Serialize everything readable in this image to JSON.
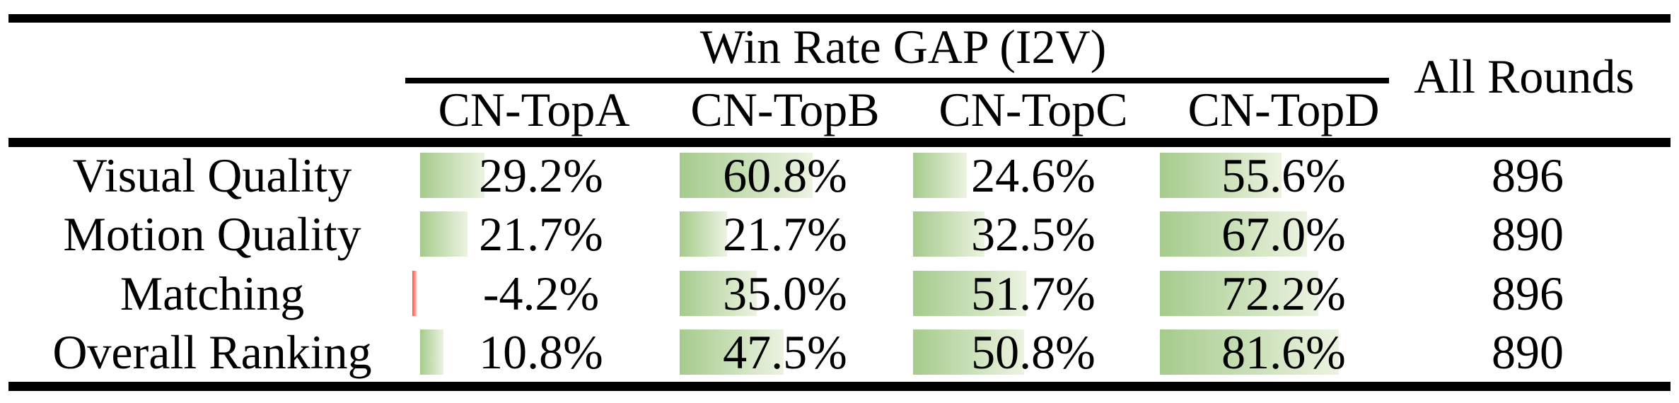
{
  "table": {
    "group_header": "Win Rate GAP (I2V)",
    "all_rounds_header": "All Rounds",
    "columns": [
      "CN-TopA",
      "CN-TopB",
      "CN-TopC",
      "CN-TopD"
    ],
    "rows": [
      {
        "label": "Visual Quality",
        "values": [
          29.2,
          60.8,
          24.6,
          55.6
        ],
        "display": [
          "29.2%",
          "60.8%",
          "24.6%",
          "55.6%"
        ],
        "all_rounds": "896"
      },
      {
        "label": "Motion Quality",
        "values": [
          21.7,
          21.7,
          32.5,
          67.0
        ],
        "display": [
          "21.7%",
          "21.7%",
          "32.5%",
          "67.0%"
        ],
        "all_rounds": "890"
      },
      {
        "label": "Matching",
        "values": [
          -4.2,
          35.0,
          51.7,
          72.2
        ],
        "display": [
          "-4.2%",
          "35.0%",
          "51.7%",
          "72.2%"
        ],
        "all_rounds": "896"
      },
      {
        "label": "Overall Ranking",
        "values": [
          10.8,
          47.5,
          50.8,
          81.6
        ],
        "display": [
          "10.8%",
          "47.5%",
          "50.8%",
          "81.6%"
        ],
        "all_rounds": "890"
      }
    ],
    "colors": {
      "rule": "#000000",
      "background": "#ffffff",
      "text": "#000000",
      "bar_positive_start": "#a5cb8c",
      "bar_positive_end": "#ecf3e1",
      "bar_negative_start": "#ff5149",
      "bar_negative_end": "#ffc3bd"
    }
  },
  "chart_data": {
    "type": "table",
    "title": "Win Rate GAP (I2V)",
    "columns": [
      "",
      "CN-TopA",
      "CN-TopB",
      "CN-TopC",
      "CN-TopD",
      "All Rounds"
    ],
    "rows": [
      [
        "Visual Quality",
        "29.2%",
        "60.8%",
        "24.6%",
        "55.6%",
        "896"
      ],
      [
        "Motion Quality",
        "21.7%",
        "21.7%",
        "32.5%",
        "67.0%",
        "890"
      ],
      [
        "Matching",
        "-4.2%",
        "35.0%",
        "51.7%",
        "72.2%",
        "896"
      ],
      [
        "Overall Ranking",
        "10.8%",
        "47.5%",
        "50.8%",
        "81.6%",
        "890"
      ]
    ],
    "notes": "Cells contain gradient data bars proportional to percentage; negative value shown with small red bar"
  }
}
